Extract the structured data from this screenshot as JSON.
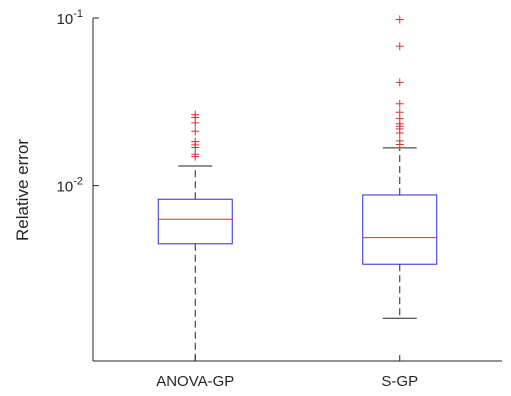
{
  "chart_data": {
    "type": "boxplot",
    "ylabel": "Relative error",
    "yscale": "log",
    "ylim": [
      0.0009,
      0.1
    ],
    "yticks": [
      {
        "value": 0.01,
        "base": "10",
        "exp": "-2"
      },
      {
        "value": 0.1,
        "base": "10",
        "exp": "-1"
      }
    ],
    "categories": [
      "ANOVA-GP",
      "S-GP"
    ],
    "boxes": [
      {
        "name": "ANOVA-GP",
        "whisker_low": 0.00088,
        "q1": 0.0045,
        "median": 0.0063,
        "q3": 0.0083,
        "whisker_high": 0.0131,
        "outliers": [
          0.0149,
          0.0154,
          0.0169,
          0.0175,
          0.0183,
          0.0211,
          0.0237,
          0.0255,
          0.0265
        ]
      },
      {
        "name": "S-GP",
        "whisker_low": 0.00162,
        "q1": 0.0034,
        "median": 0.0049,
        "q3": 0.0088,
        "whisker_high": 0.0168,
        "outliers": [
          0.0176,
          0.0185,
          0.0206,
          0.0218,
          0.0226,
          0.0234,
          0.0251,
          0.0274,
          0.0308,
          0.0413,
          0.0678,
          0.098
        ]
      }
    ],
    "colors": {
      "box": "#2929d6",
      "median": "#e03030",
      "whisker": "#262626",
      "outlier": "#e03030",
      "axis": "#262626"
    }
  }
}
